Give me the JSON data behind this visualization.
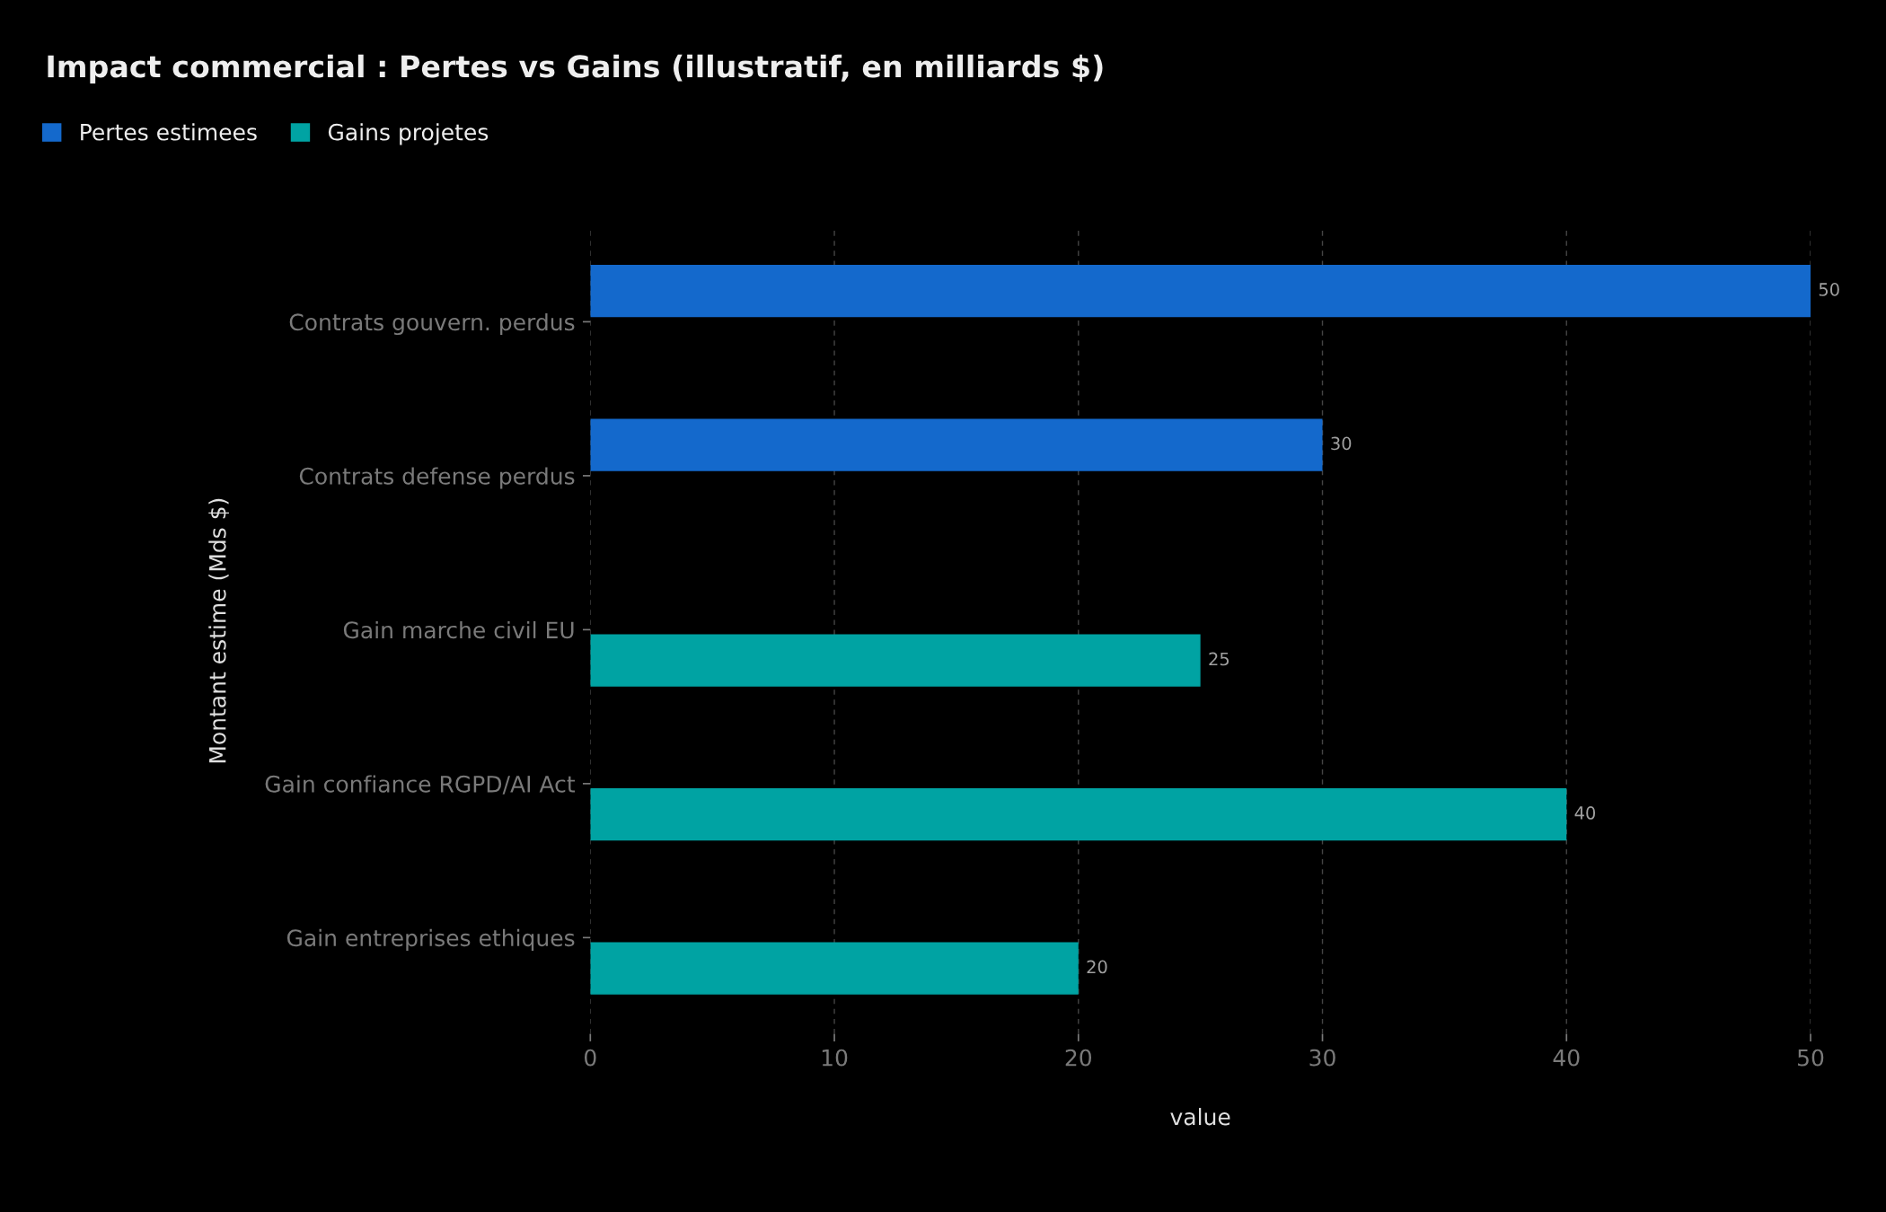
{
  "chart_data": {
    "type": "bar",
    "orientation": "horizontal",
    "title": "Impact commercial : Pertes vs Gains (illustratif, en milliards $)",
    "categories": [
      "Contrats gouvern. perdus",
      "Contrats defense perdus",
      "Gain marche civil EU",
      "Gain confiance RGPD/AI Act",
      "Gain entreprises ethiques"
    ],
    "series": [
      {
        "name": "Pertes estimees",
        "color": "#1469cc",
        "values": [
          50,
          30,
          null,
          null,
          null
        ]
      },
      {
        "name": "Gains projetes",
        "color": "#00a3a3",
        "values": [
          null,
          null,
          25,
          40,
          20
        ]
      }
    ],
    "xlabel": "value",
    "ylabel": "Montant estime (Mds $)",
    "xlim": [
      0,
      50
    ],
    "xticks": [
      0,
      10,
      20,
      30,
      40,
      50
    ],
    "grid": "x",
    "legend": "top left",
    "data_labels": true
  }
}
